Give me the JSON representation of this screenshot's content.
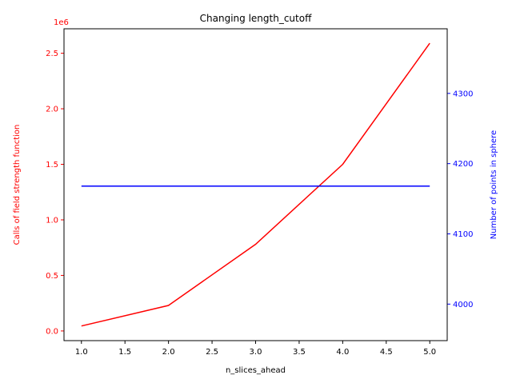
{
  "chart_data": {
    "type": "line",
    "title": "Changing length_cutoff",
    "xlabel": "n_slices_ahead",
    "ylabel_left": "Calls of field strength function",
    "ylabel_right": "Number of points in sphere",
    "left_offset_text": "1e6",
    "colors": {
      "left_axis": "#ff0000",
      "right_axis": "#0000ff",
      "frame": "#000000"
    },
    "x": [
      1.0,
      2.0,
      3.0,
      4.0,
      5.0
    ],
    "xlim": [
      0.8,
      5.2
    ],
    "x_ticks": [
      1.0,
      1.5,
      2.0,
      2.5,
      3.0,
      3.5,
      4.0,
      4.5,
      5.0
    ],
    "x_tick_labels": [
      "1.0",
      "1.5",
      "2.0",
      "2.5",
      "3.0",
      "3.5",
      "4.0",
      "4.5",
      "5.0"
    ],
    "ylim_left": [
      -0.087,
      2.72
    ],
    "y_ticks_left": [
      0.0,
      0.5,
      1.0,
      1.5,
      2.0,
      2.5
    ],
    "y_tick_labels_left": [
      "0.0",
      "0.5",
      "1.0",
      "1.5",
      "2.0",
      "2.5"
    ],
    "ylim_right": [
      3948,
      4392
    ],
    "y_ticks_right": [
      4000,
      4100,
      4200,
      4300
    ],
    "y_tick_labels_right": [
      "4000",
      "4100",
      "4200",
      "4300"
    ],
    "series": [
      {
        "axis": "left",
        "color": "#ff0000",
        "values": [
          0.045,
          0.23,
          0.78,
          1.5,
          2.59
        ]
      },
      {
        "axis": "right",
        "color": "#0000ff",
        "values": [
          4168,
          4168,
          4168,
          4168,
          4168
        ]
      }
    ],
    "grid": false,
    "legend": "none"
  }
}
